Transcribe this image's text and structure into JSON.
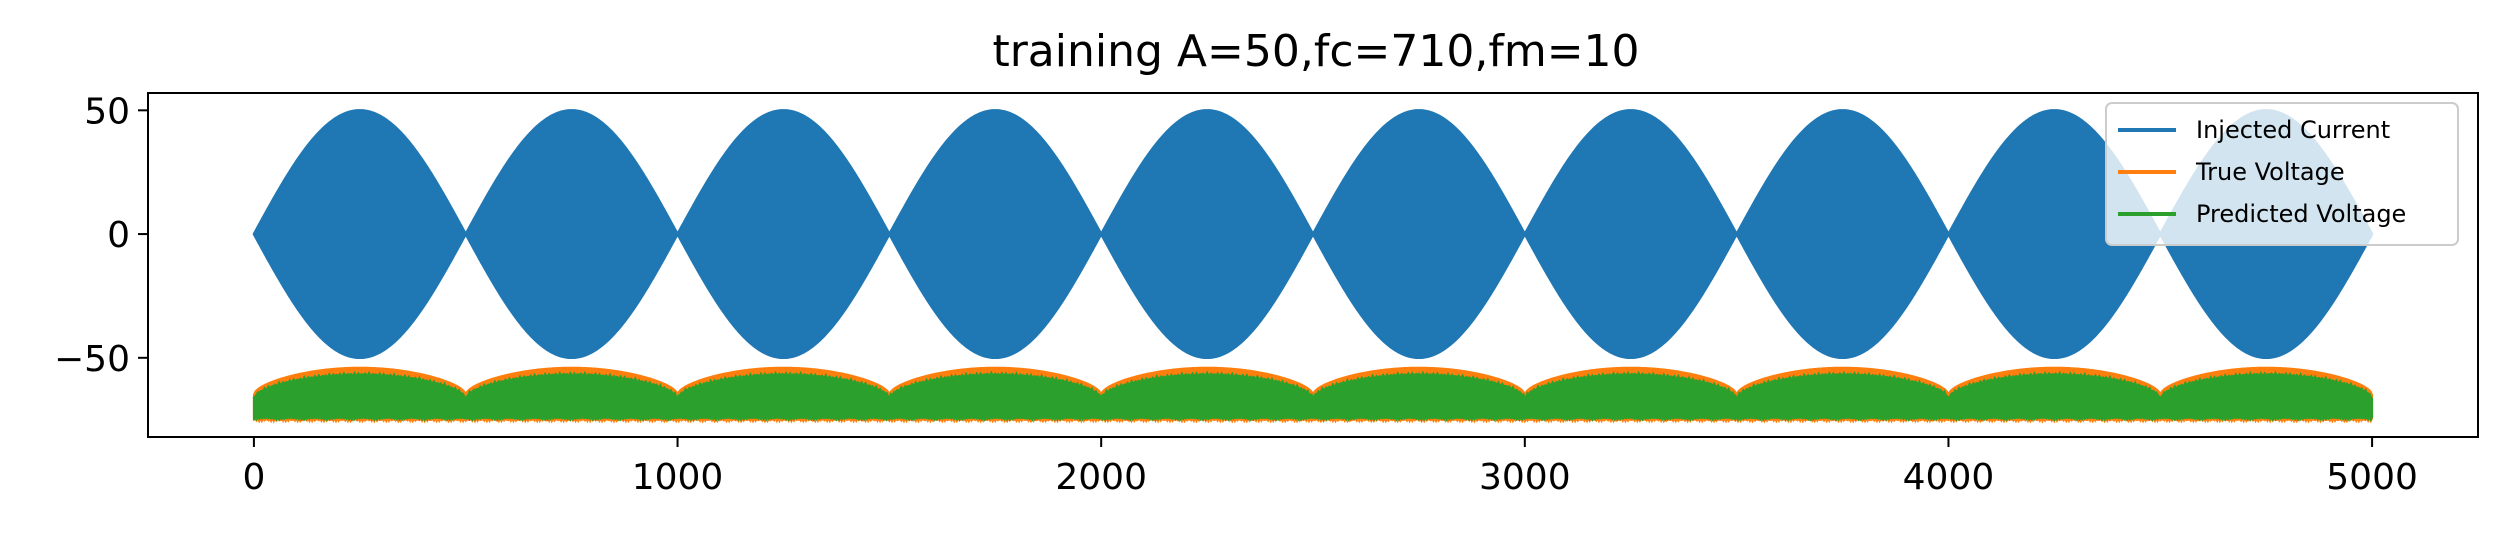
{
  "chart_data": {
    "type": "line",
    "title": "training A=50,fc=710,fm=10",
    "xlabel": "",
    "ylabel": "",
    "xlim": [
      -250,
      5250
    ],
    "ylim": [
      -82,
      57
    ],
    "x_ticks": [
      0,
      1000,
      2000,
      3000,
      4000,
      5000
    ],
    "x_tick_labels": [
      "0",
      "1000",
      "2000",
      "3000",
      "4000",
      "5000"
    ],
    "y_ticks": [
      50,
      0,
      -50
    ],
    "y_tick_labels": [
      "50",
      "0",
      "−50"
    ],
    "grid": false,
    "legend_position": "top-right",
    "series": [
      {
        "name": "Injected Current",
        "color": "#1f77b4",
        "description_values": {
          "amplitude": 50,
          "carrier_frequency": 710,
          "modulation_frequency": 10,
          "x_start": 0,
          "x_end": 5000,
          "envelope_period": 500,
          "envelope_peaks_x": [
            250,
            750,
            1250,
            1750,
            2250,
            2750,
            3250,
            3750,
            4250,
            4750
          ],
          "y_max": 50,
          "y_min": -50
        }
      },
      {
        "name": "True Voltage",
        "color": "#ff7f0e",
        "description_values": {
          "baseline_at_nodes": -65,
          "peak_value": -54,
          "node_x": [
            0,
            500,
            1000,
            1500,
            2000,
            2500,
            3000,
            3500,
            4000,
            4500,
            5000
          ],
          "lower_band": -75
        }
      },
      {
        "name": "Predicted Voltage",
        "color": "#2ca02c",
        "description_values": {
          "upper_band": -56,
          "lower_band": -75,
          "center": -70,
          "node_dip_value": -66
        }
      }
    ]
  }
}
